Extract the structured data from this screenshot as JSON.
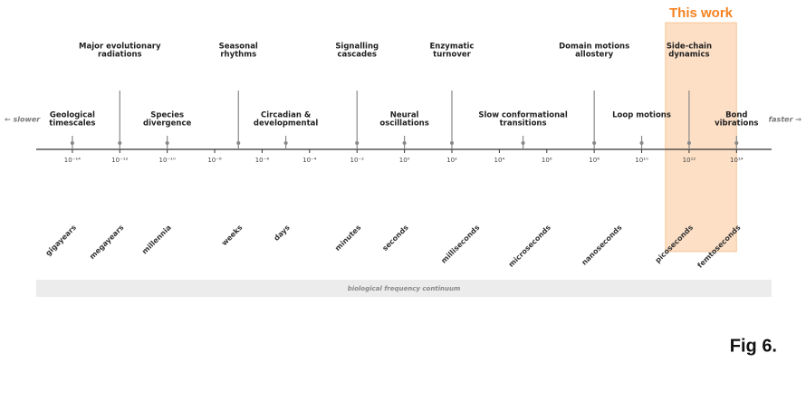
{
  "chart_data": {
    "type": "timeline",
    "log_scale": true,
    "xlim": [
      3e-16,
      3000000000000000.0
    ],
    "xticks": [
      {
        "value": 1e-14,
        "label": "10⁻¹⁴"
      },
      {
        "value": 1e-12,
        "label": "10⁻¹²"
      },
      {
        "value": 1e-10,
        "label": "10⁻¹⁰"
      },
      {
        "value": 1e-08,
        "label": "10⁻⁸"
      },
      {
        "value": 1e-06,
        "label": "10⁻⁶"
      },
      {
        "value": 0.0001,
        "label": "10⁻⁴"
      },
      {
        "value": 0.01,
        "label": "10⁻²"
      },
      {
        "value": 1,
        "label": "10⁰"
      },
      {
        "value": 100,
        "label": "10²"
      },
      {
        "value": 10000.0,
        "label": "10⁴"
      },
      {
        "value": 1000000.0,
        "label": "10⁶"
      },
      {
        "value": 100000000.0,
        "label": "10⁸"
      },
      {
        "value": 10000000000.0,
        "label": "10¹⁰"
      },
      {
        "value": 1000000000000.0,
        "label": "10¹²"
      },
      {
        "value": 100000000000000.0,
        "label": "10¹⁴"
      }
    ],
    "events": [
      {
        "label": [
          "Geological",
          "timescales"
        ],
        "x": 1e-14,
        "level": "lower"
      },
      {
        "label": [
          "Major evolutionary",
          "radiations"
        ],
        "x": 1e-12,
        "level": "upper"
      },
      {
        "label": [
          "Species",
          "divergence"
        ],
        "x": 1e-10,
        "level": "lower"
      },
      {
        "label": [
          "Seasonal",
          "rhythms"
        ],
        "x": 1e-07,
        "level": "upper"
      },
      {
        "label": [
          "Circadian &",
          "developmental"
        ],
        "x": 1e-05,
        "level": "lower"
      },
      {
        "label": [
          "Signalling",
          "cascades"
        ],
        "x": 0.01,
        "level": "upper"
      },
      {
        "label": [
          "Neural",
          "oscillations"
        ],
        "x": 1,
        "level": "lower"
      },
      {
        "label": [
          "Enzymatic",
          "turnover"
        ],
        "x": 100,
        "level": "upper"
      },
      {
        "label": [
          "Slow conformational",
          "transitions"
        ],
        "x": 100000.0,
        "level": "lower"
      },
      {
        "label": [
          "Domain motions",
          "allostery"
        ],
        "x": 100000000.0,
        "level": "upper"
      },
      {
        "label": [
          "Loop motions"
        ],
        "x": 10000000000.0,
        "level": "lower"
      },
      {
        "label": [
          "Side-chain",
          "dynamics"
        ],
        "x": 1000000000000.0,
        "level": "upper"
      },
      {
        "label": [
          "Bond",
          "vibrations"
        ],
        "x": 100000000000000.0,
        "level": "lower"
      }
    ],
    "units": [
      {
        "label": "gigayears",
        "x": 1e-14
      },
      {
        "label": "megayears",
        "x": 1e-12
      },
      {
        "label": "millennia",
        "x": 1e-10
      },
      {
        "label": "weeks",
        "x": 1e-07
      },
      {
        "label": "days",
        "x": 1e-05
      },
      {
        "label": "minutes",
        "x": 0.01
      },
      {
        "label": "seconds",
        "x": 1
      },
      {
        "label": "milliseconds",
        "x": 1000
      },
      {
        "label": "microseconds",
        "x": 1000000.0
      },
      {
        "label": "nanoseconds",
        "x": 1000000000.0
      },
      {
        "label": "picoseconds",
        "x": 1000000000000.0
      },
      {
        "label": "femtoseconds",
        "x": 100000000000000.0
      }
    ],
    "highlight": {
      "label": "This work",
      "range": [
        100000000000.0,
        100000000000000.0
      ],
      "color": "#f5a45a"
    },
    "left_label": "← slower",
    "right_label": "faster →",
    "continuum_label": "biological frequency continuum",
    "figure_label": "Fig 6."
  }
}
